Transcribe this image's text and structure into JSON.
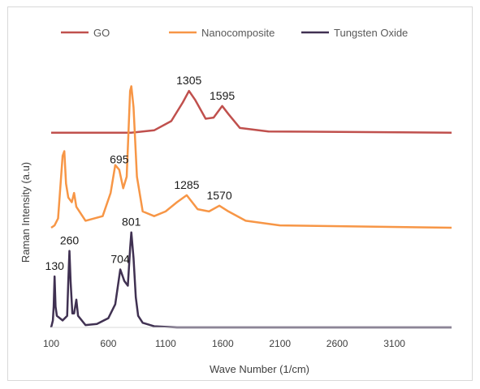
{
  "chart_data": {
    "type": "line",
    "title": "",
    "xlabel": "Wave Number  (1/cm)",
    "ylabel": "Raman Intensity (a.u)",
    "xlim": [
      100,
      3600
    ],
    "x_ticks": [
      "100",
      "600",
      "1100",
      "1600",
      "2100",
      "2600",
      "3100"
    ],
    "x_tick_values": [
      100,
      600,
      1100,
      1600,
      2100,
      2600,
      3100
    ],
    "legend_position": "top",
    "grid": false,
    "series": [
      {
        "name": "GO",
        "color": "#c0504d",
        "baseline": 8.4,
        "points": [
          [
            100,
            8.4
          ],
          [
            800,
            8.4
          ],
          [
            1000,
            8.5
          ],
          [
            1150,
            8.9
          ],
          [
            1250,
            9.7
          ],
          [
            1305,
            10.2
          ],
          [
            1360,
            9.8
          ],
          [
            1450,
            9.0
          ],
          [
            1520,
            9.05
          ],
          [
            1595,
            9.55
          ],
          [
            1650,
            9.2
          ],
          [
            1750,
            8.6
          ],
          [
            2000,
            8.45
          ],
          [
            3600,
            8.4
          ]
        ],
        "peak_labels": [
          {
            "x": 1305,
            "text": "1305"
          },
          {
            "x": 1595,
            "text": "1595"
          }
        ]
      },
      {
        "name": "Nanocomposite",
        "color": "#f79646",
        "baseline": 4.3,
        "points": [
          [
            100,
            4.3
          ],
          [
            130,
            4.4
          ],
          [
            160,
            4.7
          ],
          [
            200,
            7.4
          ],
          [
            215,
            7.6
          ],
          [
            230,
            6.2
          ],
          [
            250,
            5.6
          ],
          [
            280,
            5.4
          ],
          [
            300,
            5.8
          ],
          [
            320,
            5.2
          ],
          [
            400,
            4.6
          ],
          [
            550,
            4.8
          ],
          [
            620,
            5.8
          ],
          [
            660,
            7.0
          ],
          [
            695,
            6.8
          ],
          [
            730,
            6.0
          ],
          [
            760,
            6.5
          ],
          [
            790,
            10.2
          ],
          [
            801,
            10.4
          ],
          [
            820,
            9.5
          ],
          [
            850,
            6.5
          ],
          [
            900,
            5.0
          ],
          [
            1000,
            4.8
          ],
          [
            1100,
            5.0
          ],
          [
            1200,
            5.4
          ],
          [
            1285,
            5.7
          ],
          [
            1380,
            5.1
          ],
          [
            1480,
            5.0
          ],
          [
            1570,
            5.25
          ],
          [
            1650,
            5.0
          ],
          [
            1800,
            4.6
          ],
          [
            2100,
            4.4
          ],
          [
            3600,
            4.3
          ]
        ],
        "peak_labels": [
          {
            "x": 695,
            "text": "695"
          },
          {
            "x": 1285,
            "text": "1285"
          },
          {
            "x": 1570,
            "text": "1570"
          }
        ]
      },
      {
        "name": "Tungsten Oxide",
        "color": "#403152",
        "baseline": 0,
        "points": [
          [
            100,
            0
          ],
          [
            115,
            0.3
          ],
          [
            122,
            0.9
          ],
          [
            130,
            2.2
          ],
          [
            138,
            0.9
          ],
          [
            150,
            0.5
          ],
          [
            200,
            0.3
          ],
          [
            240,
            0.5
          ],
          [
            250,
            2.0
          ],
          [
            260,
            3.3
          ],
          [
            270,
            2.0
          ],
          [
            285,
            0.6
          ],
          [
            300,
            0.6
          ],
          [
            320,
            1.2
          ],
          [
            335,
            0.5
          ],
          [
            400,
            0.1
          ],
          [
            500,
            0.15
          ],
          [
            600,
            0.4
          ],
          [
            660,
            1.0
          ],
          [
            704,
            2.5
          ],
          [
            740,
            2.0
          ],
          [
            770,
            1.8
          ],
          [
            790,
            3.4
          ],
          [
            801,
            4.1
          ],
          [
            820,
            3.0
          ],
          [
            840,
            1.3
          ],
          [
            860,
            0.5
          ],
          [
            900,
            0.2
          ],
          [
            1000,
            0.05
          ],
          [
            1200,
            0
          ],
          [
            3600,
            0
          ]
        ],
        "peak_labels": [
          {
            "x": 130,
            "text": "130"
          },
          {
            "x": 260,
            "text": "260"
          },
          {
            "x": 704,
            "text": "704"
          },
          {
            "x": 801,
            "text": "801"
          }
        ]
      }
    ]
  }
}
